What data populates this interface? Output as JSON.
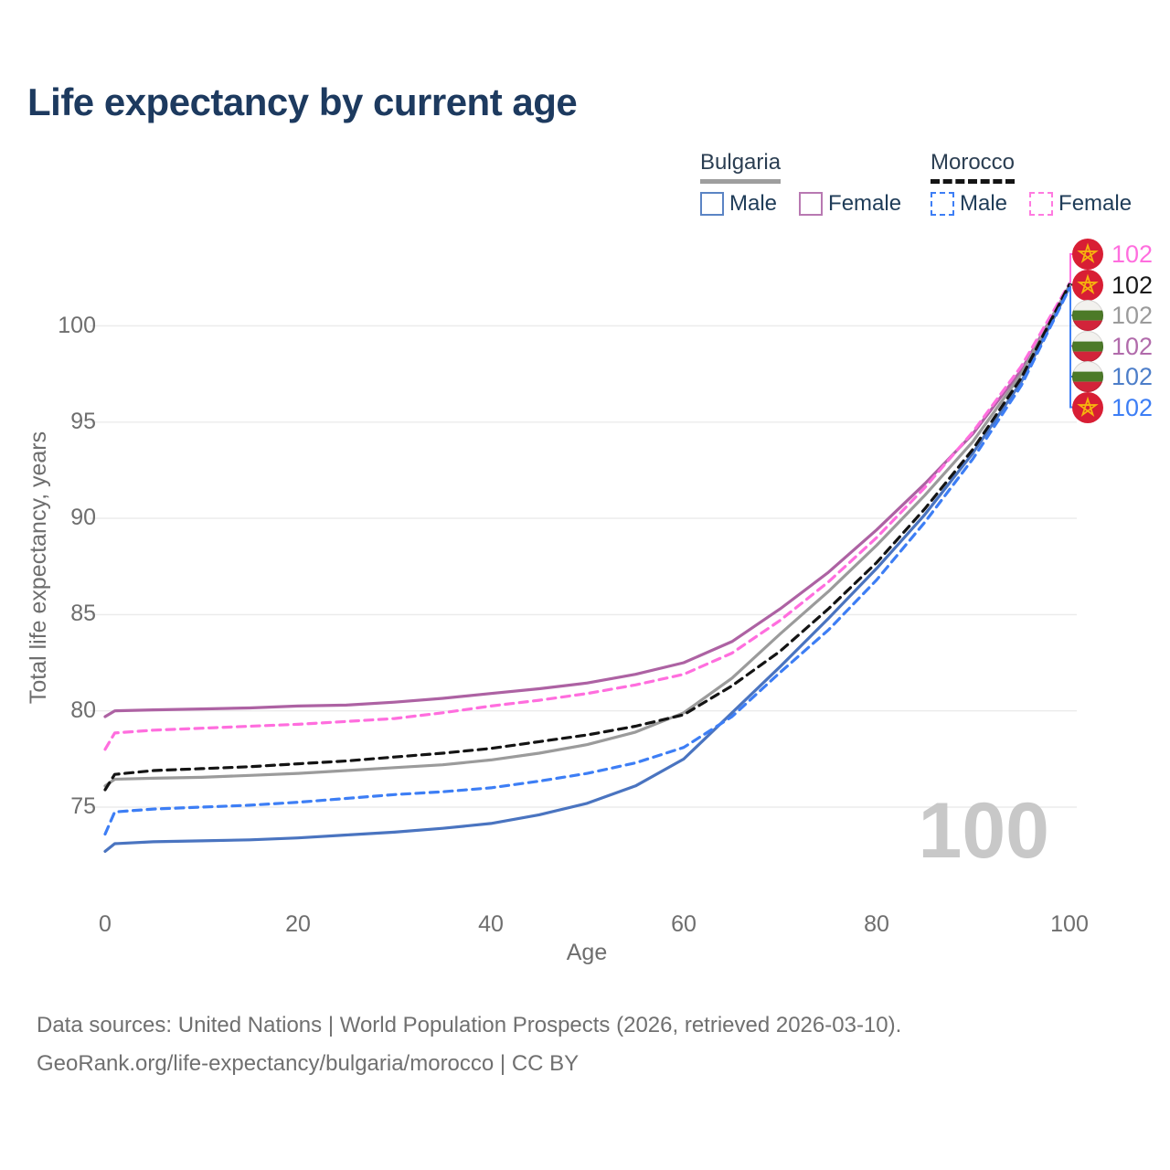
{
  "title": "Life expectancy by current age",
  "legend": {
    "groups": [
      {
        "id": "bulgaria",
        "country": "Bulgaria",
        "line_style": "solid",
        "underline_color": "#9e9e9e",
        "items": [
          {
            "id": "male",
            "label": "Male",
            "color": "#5b84c4",
            "dashed": false
          },
          {
            "id": "female",
            "label": "Female",
            "color": "#b879b2",
            "dashed": false
          }
        ]
      },
      {
        "id": "morocco",
        "country": "Morocco",
        "line_style": "dashed",
        "underline_color": "#141414",
        "items": [
          {
            "id": "male",
            "label": "Male",
            "color": "#3d7ef5",
            "dashed": true
          },
          {
            "id": "female",
            "label": "Female",
            "color": "#ff7ae0",
            "dashed": true
          }
        ]
      }
    ]
  },
  "chart_data": {
    "type": "line",
    "title": "Life expectancy by current age",
    "xlabel": "Age",
    "ylabel": "Total life expectancy, years",
    "x_ticks": [
      0,
      20,
      40,
      60,
      80,
      100
    ],
    "y_ticks": [
      75,
      80,
      85,
      90,
      95,
      100
    ],
    "xlim": [
      0,
      100
    ],
    "ylim": [
      72,
      104
    ],
    "grid": "horizontal",
    "ages": [
      0,
      1,
      5,
      10,
      15,
      20,
      25,
      30,
      35,
      40,
      45,
      50,
      55,
      60,
      65,
      70,
      75,
      80,
      85,
      90,
      95,
      100
    ],
    "series": [
      {
        "name": "Bulgaria — Male",
        "country": "Bulgaria",
        "sex": "Male",
        "color": "#4a74c0",
        "dashed": false,
        "end_label": "102",
        "values": [
          72.7,
          73.1,
          73.2,
          73.25,
          73.3,
          73.4,
          73.55,
          73.7,
          73.9,
          74.15,
          74.6,
          75.2,
          76.1,
          77.5,
          79.9,
          82.3,
          84.8,
          87.4,
          90.2,
          93.4,
          97.1,
          102.0
        ]
      },
      {
        "name": "Bulgaria — Female",
        "country": "Bulgaria",
        "sex": "Female",
        "color": "#ad62a3",
        "dashed": false,
        "end_label": "102",
        "values": [
          79.7,
          80.0,
          80.05,
          80.1,
          80.15,
          80.25,
          80.3,
          80.45,
          80.65,
          80.9,
          81.15,
          81.45,
          81.9,
          82.5,
          83.6,
          85.3,
          87.2,
          89.4,
          91.8,
          94.4,
          97.7,
          102.05
        ]
      },
      {
        "name": "Bulgaria — Both sexes",
        "country": "Bulgaria",
        "sex": "Both",
        "color": "#9b9b9b",
        "dashed": false,
        "end_label": "102",
        "values": [
          76.1,
          76.45,
          76.5,
          76.55,
          76.65,
          76.75,
          76.9,
          77.05,
          77.2,
          77.45,
          77.8,
          78.25,
          78.9,
          79.9,
          81.7,
          84.0,
          86.2,
          88.6,
          91.2,
          94.0,
          97.5,
          102.1
        ]
      },
      {
        "name": "Morocco — Male",
        "country": "Morocco",
        "sex": "Male",
        "color": "#3d7ef5",
        "dashed": true,
        "end_label": "102",
        "values": [
          73.6,
          74.75,
          74.9,
          75.0,
          75.1,
          75.25,
          75.45,
          75.65,
          75.8,
          76.0,
          76.35,
          76.75,
          77.3,
          78.1,
          79.7,
          82.0,
          84.2,
          86.8,
          89.8,
          93.1,
          96.9,
          101.95
        ]
      },
      {
        "name": "Morocco — Female",
        "country": "Morocco",
        "sex": "Female",
        "color": "#ff6ede",
        "dashed": true,
        "end_label": "102",
        "values": [
          78.0,
          78.85,
          79.0,
          79.1,
          79.2,
          79.3,
          79.45,
          79.6,
          79.9,
          80.25,
          80.55,
          80.9,
          81.35,
          81.9,
          83.0,
          84.7,
          86.7,
          89.0,
          91.6,
          94.5,
          97.9,
          102.2
        ]
      },
      {
        "name": "Morocco — Both sexes",
        "country": "Morocco",
        "sex": "Both",
        "color": "#141414",
        "dashed": true,
        "end_label": "102",
        "values": [
          75.9,
          76.7,
          76.9,
          77.0,
          77.1,
          77.25,
          77.4,
          77.6,
          77.8,
          78.05,
          78.4,
          78.75,
          79.2,
          79.8,
          81.3,
          83.1,
          85.3,
          87.7,
          90.5,
          93.6,
          97.3,
          102.15
        ]
      }
    ]
  },
  "right_labels": [
    {
      "series": "Morocco — Female",
      "flag": "morocco",
      "value": "102",
      "color": "#ff6ede"
    },
    {
      "series": "Morocco — Both sexes",
      "flag": "morocco",
      "value": "102",
      "color": "#1a1a1a"
    },
    {
      "series": "Bulgaria — Both sexes",
      "flag": "bulgaria",
      "value": "102",
      "color": "#9b9b9b"
    },
    {
      "series": "Bulgaria — Female",
      "flag": "bulgaria",
      "value": "102",
      "color": "#b16bab"
    },
    {
      "series": "Bulgaria — Male",
      "flag": "bulgaria",
      "value": "102",
      "color": "#4d7ec9"
    },
    {
      "series": "Morocco — Male",
      "flag": "morocco",
      "value": "102",
      "color": "#3d7ef5"
    }
  ],
  "watermark": "100",
  "footer": {
    "line1": "Data sources: United Nations | World Population Prospects (2026, retrieved 2026-03-10).",
    "line2": "GeoRank.org/life-expectancy/bulgaria/morocco | CC BY"
  }
}
